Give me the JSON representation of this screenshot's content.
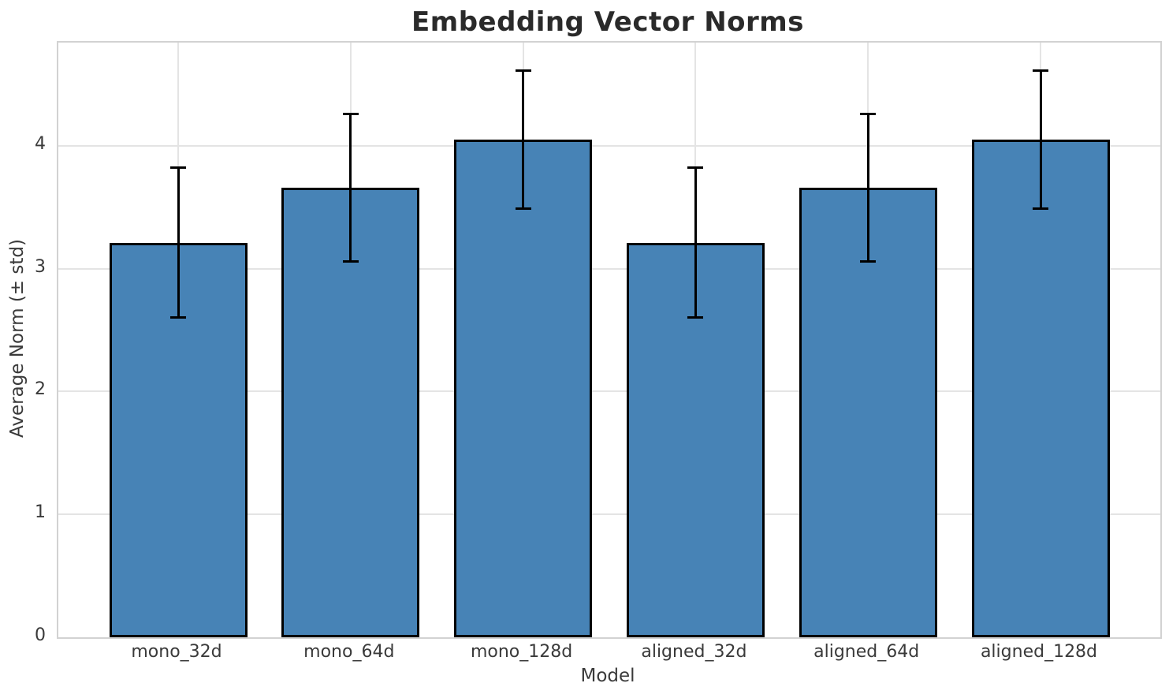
{
  "chart_data": {
    "type": "bar",
    "title": "Embedding Vector Norms",
    "xlabel": "Model",
    "ylabel": "Average Norm (± std)",
    "categories": [
      "mono_32d",
      "mono_64d",
      "mono_128d",
      "aligned_32d",
      "aligned_64d",
      "aligned_128d"
    ],
    "values": [
      3.21,
      3.66,
      4.05,
      3.21,
      3.66,
      4.05
    ],
    "errors": [
      0.61,
      0.6,
      0.56,
      0.61,
      0.6,
      0.56
    ],
    "yticks": [
      0,
      1,
      2,
      3,
      4
    ],
    "ylim": [
      0,
      4.84
    ],
    "grid": true,
    "legend": "none",
    "error_bars": true,
    "colors": {
      "bar_fill": "#4783b6",
      "bar_edge": "#000000",
      "error_bar": "#000000",
      "grid": "#e4e4e4",
      "spine": "#d2d2d2",
      "title_text": "#2a2a2a",
      "tick_text": "#3a3a3a"
    }
  }
}
